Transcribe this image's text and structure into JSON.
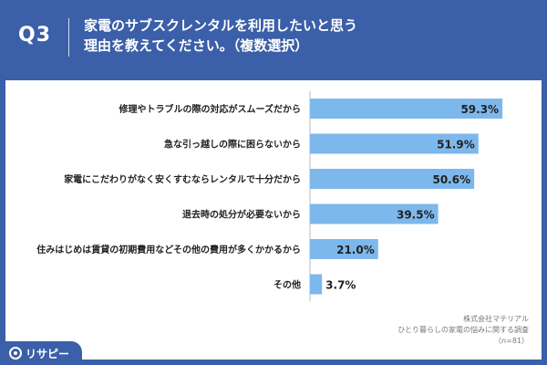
{
  "header": {
    "question": "Q3",
    "title_line1": "家電のサブスクレンタルを利用したいと思う",
    "title_line2": "理由を教えてください。（複数選択）"
  },
  "source": {
    "company": "株式会社マテリアル",
    "survey": "ひとり暮らしの家電の悩みに関する調査",
    "n": "（n=81）"
  },
  "logo": {
    "text": "リサピー",
    "icon": "logo-circle-icon"
  },
  "colors": {
    "bar": "#7db8ec",
    "header": "#3b5fa8"
  },
  "chart_data": {
    "type": "bar",
    "orientation": "horizontal",
    "categories": [
      "修理やトラブルの際の対応がスムーズだから",
      "急な引っ越しの際に困らないから",
      "家電にこだわりがなく安くすむならレンタルで十分だから",
      "退去時の処分が必要ないから",
      "住みはじめは賃貸の初期費用などその他の費用が多くかかるから",
      "その他"
    ],
    "values": [
      59.3,
      51.9,
      50.6,
      39.5,
      21.0,
      3.7
    ],
    "value_labels": [
      "59.3%",
      "51.9%",
      "50.6%",
      "39.5%",
      "21.0%",
      "3.7%"
    ],
    "unit": "%",
    "xlim": [
      0,
      100
    ],
    "grid": false,
    "legend": "none"
  }
}
